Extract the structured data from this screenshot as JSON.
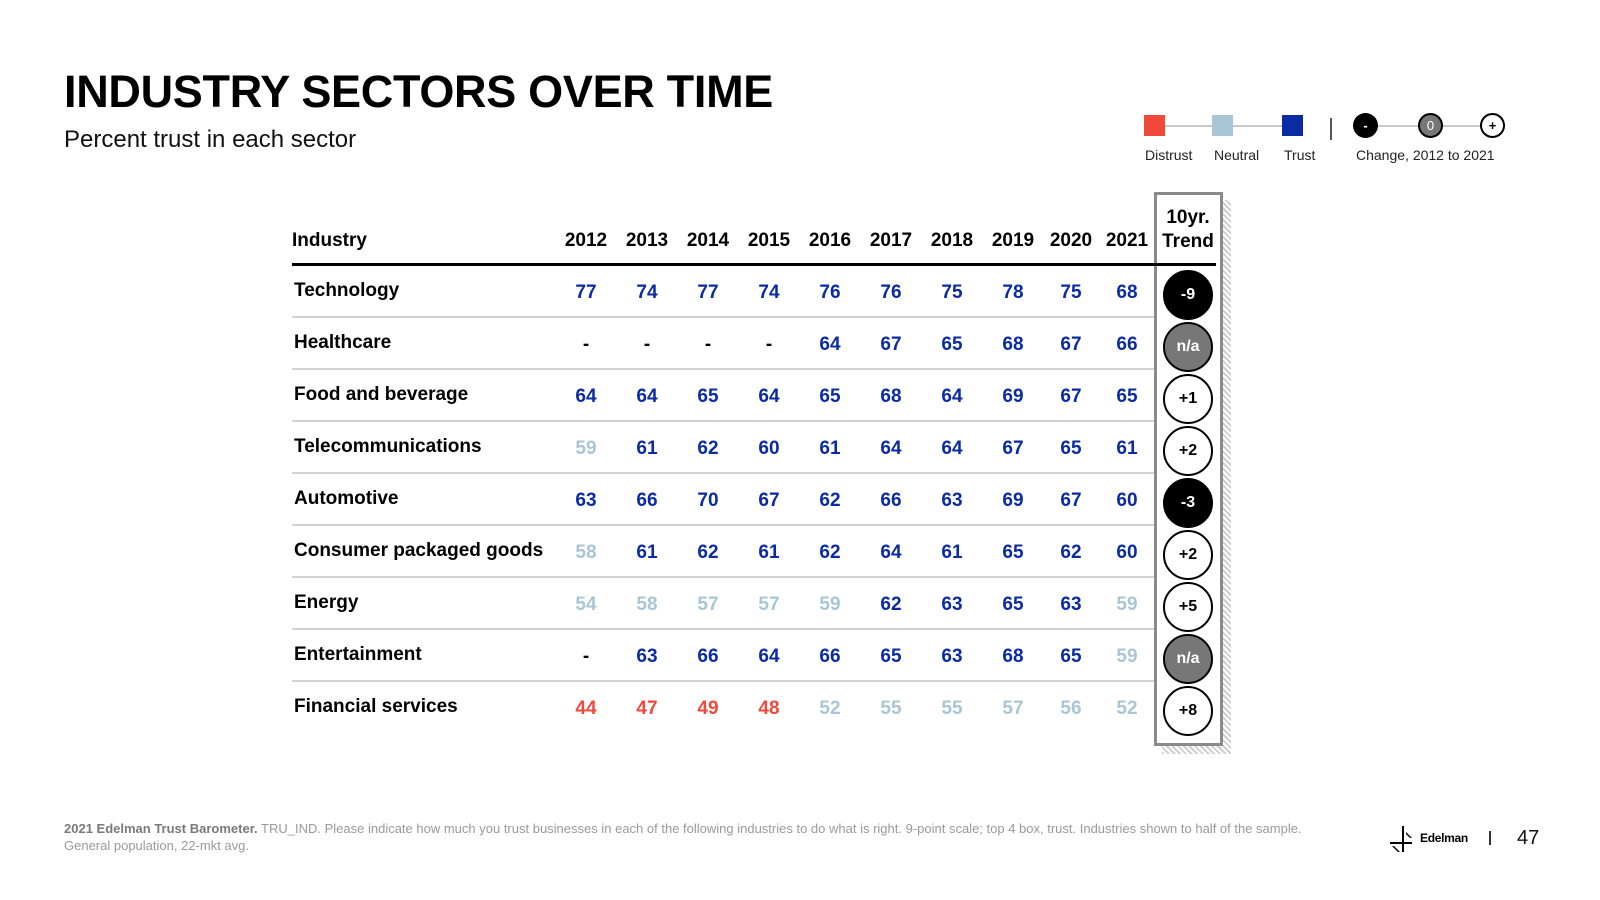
{
  "title": "INDUSTRY SECTORS OVER TIME",
  "subtitle": "Percent trust in each sector",
  "legend": {
    "distrust_label": "Distrust",
    "neutral_label": "Neutral",
    "trust_label": "Trust",
    "change_label": "Change, 2012 to 2021",
    "minus_symbol": "-",
    "zero_symbol": "0",
    "plus_symbol": "+"
  },
  "colors": {
    "distrust": "#f0483a",
    "neutral": "#a9c6d6",
    "trust": "#0b2ba4",
    "na_badge": "#777777"
  },
  "chart_data": {
    "type": "table",
    "header_industry": "Industry",
    "header_trend": "10yr. Trend",
    "columns": [
      "2012",
      "2013",
      "2014",
      "2015",
      "2016",
      "2017",
      "2018",
      "2019",
      "2020",
      "2021"
    ],
    "rows": [
      {
        "industry": "Technology",
        "values": [
          "77",
          "74",
          "77",
          "74",
          "76",
          "76",
          "75",
          "78",
          "75",
          "68"
        ],
        "levels": [
          "t",
          "t",
          "t",
          "t",
          "t",
          "t",
          "t",
          "t",
          "t",
          "t"
        ],
        "trend": "-9"
      },
      {
        "industry": "Healthcare",
        "values": [
          "-",
          "-",
          "-",
          "-",
          "64",
          "67",
          "65",
          "68",
          "67",
          "66"
        ],
        "levels": [
          "k",
          "k",
          "k",
          "k",
          "t",
          "t",
          "t",
          "t",
          "t",
          "t"
        ],
        "trend": "n/a"
      },
      {
        "industry": "Food and beverage",
        "values": [
          "64",
          "64",
          "65",
          "64",
          "65",
          "68",
          "64",
          "69",
          "67",
          "65"
        ],
        "levels": [
          "t",
          "t",
          "t",
          "t",
          "t",
          "t",
          "t",
          "t",
          "t",
          "t"
        ],
        "trend": "+1"
      },
      {
        "industry": "Telecommunications",
        "values": [
          "59",
          "61",
          "62",
          "60",
          "61",
          "64",
          "64",
          "67",
          "65",
          "61"
        ],
        "levels": [
          "n",
          "t",
          "t",
          "t",
          "t",
          "t",
          "t",
          "t",
          "t",
          "t"
        ],
        "trend": "+2"
      },
      {
        "industry": "Automotive",
        "values": [
          "63",
          "66",
          "70",
          "67",
          "62",
          "66",
          "63",
          "69",
          "67",
          "60"
        ],
        "levels": [
          "t",
          "t",
          "t",
          "t",
          "t",
          "t",
          "t",
          "t",
          "t",
          "t"
        ],
        "trend": "-3"
      },
      {
        "industry": "Consumer packaged goods",
        "values": [
          "58",
          "61",
          "62",
          "61",
          "62",
          "64",
          "61",
          "65",
          "62",
          "60"
        ],
        "levels": [
          "n",
          "t",
          "t",
          "t",
          "t",
          "t",
          "t",
          "t",
          "t",
          "t"
        ],
        "trend": "+2"
      },
      {
        "industry": "Energy",
        "values": [
          "54",
          "58",
          "57",
          "57",
          "59",
          "62",
          "63",
          "65",
          "63",
          "59"
        ],
        "levels": [
          "n",
          "n",
          "n",
          "n",
          "n",
          "t",
          "t",
          "t",
          "t",
          "n"
        ],
        "trend": "+5"
      },
      {
        "industry": "Entertainment",
        "values": [
          "-",
          "63",
          "66",
          "64",
          "66",
          "65",
          "63",
          "68",
          "65",
          "59"
        ],
        "levels": [
          "k",
          "t",
          "t",
          "t",
          "t",
          "t",
          "t",
          "t",
          "t",
          "n"
        ],
        "trend": "n/a"
      },
      {
        "industry": "Financial services",
        "values": [
          "44",
          "47",
          "49",
          "48",
          "52",
          "55",
          "55",
          "57",
          "56",
          "52"
        ],
        "levels": [
          "d",
          "d",
          "d",
          "d",
          "n",
          "n",
          "n",
          "n",
          "n",
          "n"
        ],
        "trend": "+8"
      }
    ]
  },
  "footnote": {
    "source_bold": "2021 Edelman Trust Barometer.",
    "source_text": "TRU_IND. Please indicate how much you trust businesses in each of the following industries to do what is right. 9-point scale; top 4 box, trust. Industries shown to half of the sample. General population, 22-mkt avg."
  },
  "brand": "Edelman",
  "page_number": "47"
}
